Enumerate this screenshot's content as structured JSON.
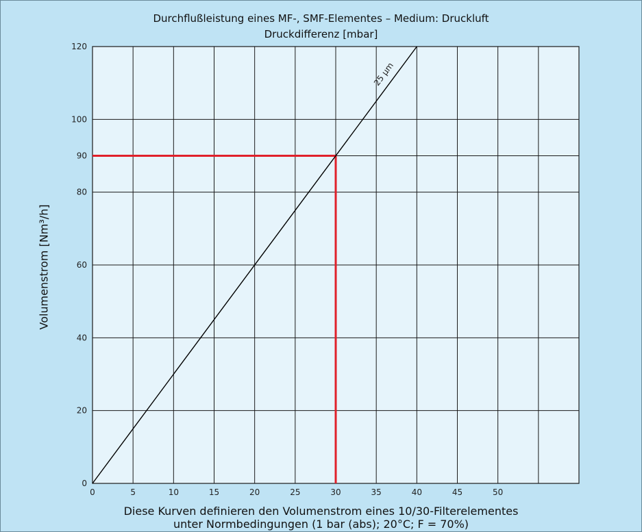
{
  "colors": {
    "background": "#bfe3f4",
    "plot_area": "#e6f4fb",
    "grid": "#1a1a1a",
    "line": "#000000",
    "highlight": "#e0202a"
  },
  "chart_data": {
    "type": "line",
    "title": "Durchflußleistung eines MF-, SMF-Elementes – Medium: Druckluft",
    "xlabel": "Druckdifferenz [mbar]",
    "ylabel": "Volumenstrom [Nm³/h]",
    "xlim": [
      0,
      60
    ],
    "ylim": [
      0,
      120
    ],
    "x_ticks": [
      0,
      5,
      10,
      15,
      20,
      25,
      30,
      35,
      40,
      45,
      50
    ],
    "x_gridlines": [
      0,
      5,
      10,
      15,
      20,
      25,
      30,
      35,
      40,
      45,
      50,
      55,
      60
    ],
    "y_ticks": [
      0,
      20,
      40,
      60,
      80,
      90,
      100,
      120
    ],
    "grid": true,
    "series": [
      {
        "name": "25 µm",
        "x": [
          0,
          40
        ],
        "y": [
          0,
          120
        ]
      }
    ],
    "highlight": {
      "x": 30,
      "y": 90
    },
    "note_lines": [
      "Diese Kurven definieren den Volumenstrom eines 10/30-Filterelementes",
      "unter Normbedingungen (1 bar (abs); 20°C; F = 70%)"
    ]
  }
}
